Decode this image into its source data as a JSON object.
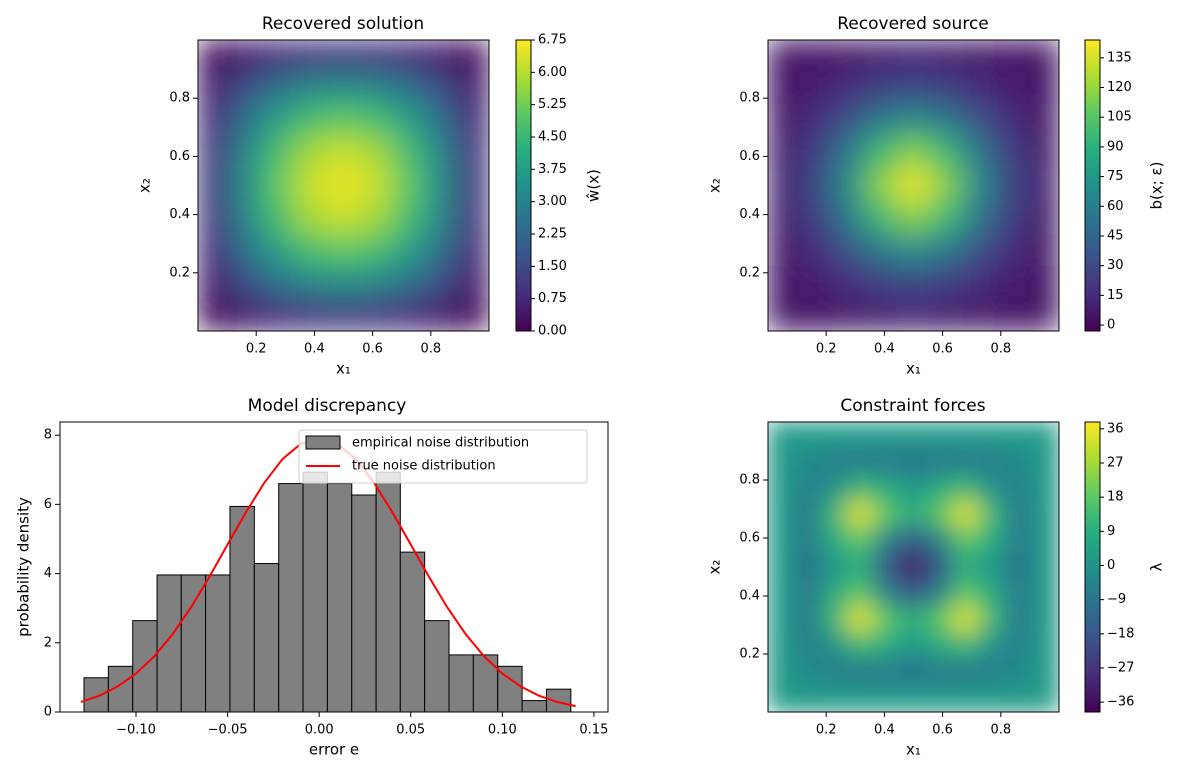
{
  "chart_data": [
    {
      "type": "heatmap",
      "title": "Recovered solution",
      "xlabel": "x₁",
      "ylabel": "x₂",
      "colorbar_label": "ŵ(x)",
      "colormap": "viridis",
      "xlim": [
        0,
        1
      ],
      "ylim": [
        0,
        1
      ],
      "xticks": [
        0.2,
        0.4,
        0.6,
        0.8
      ],
      "yticks": [
        0.2,
        0.4,
        0.6,
        0.8
      ],
      "zlim": [
        0,
        6.75
      ],
      "zticks": [
        {
          "value": 0,
          "label": "0.00"
        },
        {
          "value": 0.75,
          "label": "0.75"
        },
        {
          "value": 1.5,
          "label": "1.50"
        },
        {
          "value": 2.25,
          "label": "2.25"
        },
        {
          "value": 3,
          "label": "3.00"
        },
        {
          "value": 3.75,
          "label": "3.75"
        },
        {
          "value": 4.5,
          "label": "4.50"
        },
        {
          "value": 5.25,
          "label": "5.25"
        },
        {
          "value": 6,
          "label": "6.00"
        },
        {
          "value": 6.75,
          "label": "6.75"
        }
      ],
      "z": [
        [
          0.2,
          0.57,
          0.88,
          1.08,
          1.15,
          1.08,
          0.88,
          0.57,
          0.2
        ],
        [
          0.57,
          1.65,
          2.53,
          3.1,
          3.3,
          3.1,
          2.53,
          1.65,
          0.57
        ],
        [
          0.88,
          2.53,
          3.87,
          4.75,
          5.06,
          4.75,
          3.87,
          2.53,
          0.88
        ],
        [
          1.08,
          3.1,
          4.75,
          5.83,
          6.2,
          5.83,
          4.75,
          3.1,
          1.08
        ],
        [
          1.15,
          3.3,
          5.06,
          6.2,
          6.6,
          6.2,
          5.06,
          3.3,
          1.15
        ],
        [
          1.08,
          3.1,
          4.75,
          5.83,
          6.2,
          5.83,
          4.75,
          3.1,
          1.08
        ],
        [
          0.88,
          2.53,
          3.87,
          4.75,
          5.06,
          4.75,
          3.87,
          2.53,
          0.88
        ],
        [
          0.57,
          1.65,
          2.53,
          3.1,
          3.3,
          3.1,
          2.53,
          1.65,
          0.57
        ],
        [
          0.2,
          0.57,
          0.88,
          1.08,
          1.15,
          1.08,
          0.88,
          0.57,
          0.2
        ]
      ]
    },
    {
      "type": "heatmap",
      "title": "Recovered source",
      "xlabel": "x₁",
      "ylabel": "x₂",
      "colorbar_label": "b(x; ε)",
      "colormap": "viridis",
      "xlim": [
        0,
        1
      ],
      "ylim": [
        0,
        1
      ],
      "xticks": [
        0.2,
        0.4,
        0.6,
        0.8
      ],
      "yticks": [
        0.2,
        0.4,
        0.6,
        0.8
      ],
      "zlim": [
        -3,
        144
      ],
      "zticks": [
        0,
        15,
        30,
        45,
        60,
        75,
        90,
        105,
        120,
        135
      ],
      "z": [
        [
          5,
          6,
          8,
          10,
          12,
          10,
          8,
          6,
          5
        ],
        [
          6,
          9,
          16,
          25,
          29,
          25,
          16,
          9,
          6
        ],
        [
          8,
          16,
          34,
          57,
          68,
          57,
          34,
          16,
          8
        ],
        [
          10,
          25,
          57,
          97,
          117,
          97,
          57,
          25,
          10
        ],
        [
          12,
          29,
          68,
          117,
          140,
          117,
          68,
          29,
          12
        ],
        [
          10,
          25,
          57,
          97,
          117,
          97,
          57,
          25,
          10
        ],
        [
          8,
          16,
          34,
          57,
          68,
          57,
          34,
          16,
          8
        ],
        [
          6,
          9,
          16,
          25,
          29,
          25,
          16,
          9,
          6
        ],
        [
          5,
          6,
          8,
          10,
          12,
          10,
          8,
          6,
          5
        ]
      ]
    },
    {
      "type": "histogram",
      "title": "Model discrepancy",
      "xlabel": "error e",
      "ylabel": "probability density",
      "legend": "upper right",
      "xlim": [
        -0.1415,
        0.1577
      ],
      "ylim": [
        0,
        8.38
      ],
      "xticks": [
        {
          "value": -0.1,
          "label": "−0.10"
        },
        {
          "value": -0.05,
          "label": "−0.05"
        },
        {
          "value": 0,
          "label": "0.00"
        },
        {
          "value": 0.05,
          "label": "0.05"
        },
        {
          "value": 0.1,
          "label": "0.10"
        },
        {
          "value": 0.15,
          "label": "0.15"
        }
      ],
      "yticks": [
        0,
        2,
        4,
        6,
        8
      ],
      "series": [
        {
          "name": "empirical noise distribution",
          "color": "#808080",
          "bins": [
            -0.1284,
            -0.1151,
            -0.1018,
            -0.0885,
            -0.0753,
            -0.062,
            -0.0487,
            -0.0354,
            -0.0221,
            -0.0088,
            0.0045,
            0.0178,
            0.0311,
            0.0443,
            0.0576,
            0.0709,
            0.0842,
            0.0975,
            0.1108,
            0.1241,
            0.1374
          ],
          "values": [
            0.99,
            1.32,
            2.64,
            3.96,
            3.96,
            3.96,
            5.94,
            4.29,
            6.6,
            6.93,
            6.6,
            6.27,
            6.93,
            4.62,
            2.64,
            1.65,
            1.65,
            1.32,
            0.33,
            0.66
          ]
        },
        {
          "name": "true noise distribution",
          "color": "#ff0000",
          "x": [
            -0.13,
            -0.12,
            -0.11,
            -0.1,
            -0.09,
            -0.08,
            -0.07,
            -0.06,
            -0.05,
            -0.04,
            -0.03,
            -0.02,
            -0.01,
            0,
            0.01,
            0.02,
            0.03,
            0.04,
            0.05,
            0.06,
            0.07,
            0.08,
            0.09,
            0.1,
            0.11,
            0.12,
            0.13,
            0.14
          ],
          "values": [
            0.29,
            0.47,
            0.74,
            1.11,
            1.61,
            2.25,
            3.02,
            3.9,
            4.84,
            5.77,
            6.62,
            7.31,
            7.75,
            7.9,
            7.75,
            7.31,
            6.62,
            5.77,
            4.84,
            3.9,
            3.02,
            2.25,
            1.61,
            1.11,
            0.74,
            0.47,
            0.29,
            0.17
          ]
        }
      ]
    },
    {
      "type": "heatmap",
      "title": "Constraint forces",
      "xlabel": "x₁",
      "ylabel": "x₂",
      "colorbar_label": "λ",
      "colormap": "viridis",
      "xlim": [
        0,
        1
      ],
      "ylim": [
        0,
        1
      ],
      "xticks": [
        0.2,
        0.4,
        0.6,
        0.8
      ],
      "yticks": [
        0.2,
        0.4,
        0.6,
        0.8
      ],
      "zlim": [
        -38.6,
        37.8
      ],
      "zticks": [
        {
          "value": -36,
          "label": "−36"
        },
        {
          "value": -27,
          "label": "−27"
        },
        {
          "value": -18,
          "label": "−18"
        },
        {
          "value": -9,
          "label": "−9"
        },
        0,
        9,
        18,
        27,
        36
      ],
      "z": [
        [
          3,
          3,
          3,
          3,
          3,
          3,
          3,
          3,
          3,
          3,
          3
        ],
        [
          3,
          -3,
          -6,
          -8,
          -8,
          -10,
          -8,
          -8,
          -6,
          -3,
          3
        ],
        [
          3,
          -6,
          0,
          12,
          8,
          2,
          8,
          12,
          0,
          -6,
          3
        ],
        [
          3,
          -8,
          12,
          34,
          18,
          8,
          18,
          34,
          12,
          -8,
          3
        ],
        [
          3,
          -8,
          8,
          18,
          -5,
          -18,
          -5,
          18,
          8,
          -8,
          3
        ],
        [
          3,
          -10,
          2,
          8,
          -18,
          -36,
          -18,
          8,
          2,
          -10,
          3
        ],
        [
          3,
          -8,
          8,
          18,
          -5,
          -18,
          -5,
          18,
          8,
          -8,
          3
        ],
        [
          3,
          -8,
          12,
          34,
          18,
          8,
          18,
          34,
          12,
          -8,
          3
        ],
        [
          3,
          -6,
          0,
          12,
          8,
          2,
          8,
          12,
          0,
          -6,
          3
        ],
        [
          3,
          -3,
          -6,
          -8,
          -8,
          -10,
          -8,
          -8,
          -6,
          -3,
          3
        ],
        [
          3,
          3,
          3,
          3,
          3,
          3,
          3,
          3,
          3,
          3,
          3
        ]
      ]
    }
  ]
}
